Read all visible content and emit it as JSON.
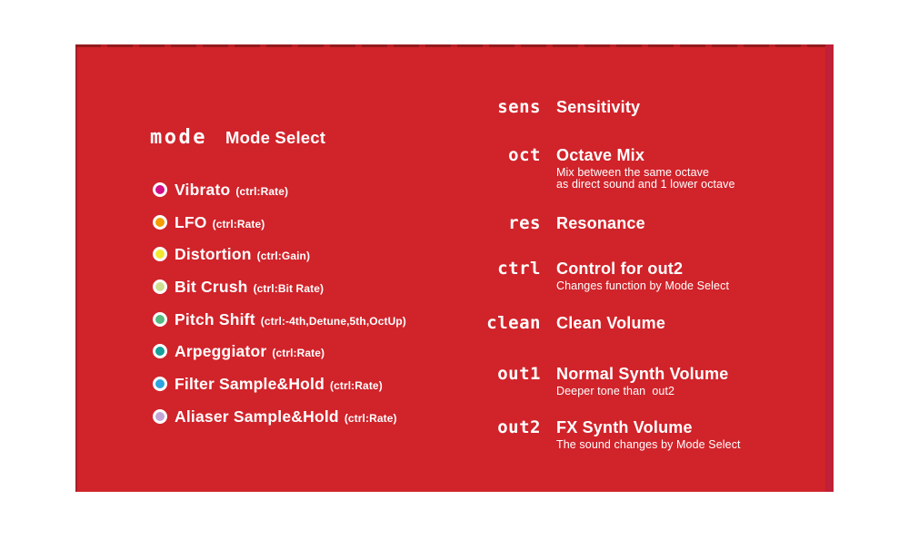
{
  "panel": {
    "bg_color": "#d1232a",
    "top_dash_color": "#931a1d",
    "left_edge_color": "#a81c28",
    "right_edge_color": "#c02038",
    "text_color": "#ffffff",
    "dot_ring_color": "#ffffff"
  },
  "mode_section": {
    "label": "mode",
    "title": "Mode Select",
    "items": [
      {
        "name": "Vibrato",
        "ctrl": "(ctrl:Rate)",
        "color": "#d30e86"
      },
      {
        "name": "LFO",
        "ctrl": "(ctrl:Rate)",
        "color": "#f59c00"
      },
      {
        "name": "Distortion",
        "ctrl": "(ctrl:Gain)",
        "color": "#f2e832"
      },
      {
        "name": "Bit Crush",
        "ctrl": "(ctrl:Bit Rate)",
        "color": "#cfdf92"
      },
      {
        "name": "Pitch Shift",
        "ctrl": "(ctrl:-4th,Detune,5th,OctUp)",
        "color": "#57ba80"
      },
      {
        "name": "Arpeggiator",
        "ctrl": "(ctrl:Rate)",
        "color": "#16a09a"
      },
      {
        "name": "Filter Sample&Hold",
        "ctrl": "(ctrl:Rate)",
        "color": "#2ea3e0"
      },
      {
        "name": "Aliaser Sample&Hold",
        "ctrl": "(ctrl:Rate)",
        "color": "#c3a5d6"
      }
    ]
  },
  "controls": [
    {
      "label": "sens",
      "title": "Sensitivity",
      "desc": []
    },
    {
      "label": "oct",
      "title": "Octave Mix",
      "desc": [
        "Mix between the same octave",
        "as direct sound and 1 lower octave"
      ]
    },
    {
      "label": "res",
      "title": "Resonance",
      "desc": []
    },
    {
      "label": "ctrl",
      "title": "Control for out2",
      "desc": [
        "Changes function by Mode Select"
      ]
    },
    {
      "label": "clean",
      "title": "Clean Volume",
      "desc": []
    },
    {
      "label": "out1",
      "title": "Normal Synth Volume",
      "desc": [
        "Deeper tone than  out2"
      ]
    },
    {
      "label": "out2",
      "title": "FX Synth Volume",
      "desc": [
        "The sound changes by Mode Select"
      ]
    }
  ]
}
